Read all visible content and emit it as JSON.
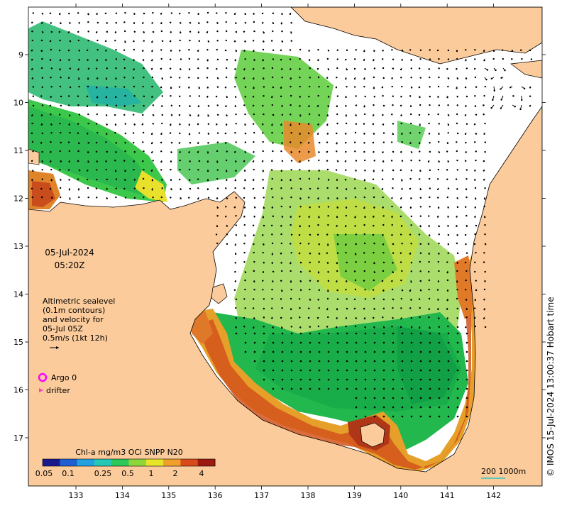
{
  "map": {
    "date_line1": "05-Jul-2024",
    "date_line2": "05:20Z",
    "sealevel_note": [
      "Altimetric sealevel",
      "(0.1m contours)",
      "and velocity for",
      "05-Jul 05Z",
      "0.5m/s (1kt 12h)"
    ],
    "argo_label": "Argo 0",
    "drifter_label": "drifter",
    "lat_ticks": [
      "9",
      "10",
      "11",
      "12",
      "13",
      "14",
      "15",
      "16",
      "17"
    ],
    "lon_ticks": [
      "133",
      "134",
      "135",
      "136",
      "137",
      "138",
      "139",
      "140",
      "141",
      "142"
    ],
    "colorbar": {
      "title": "Chl-a mg/m3 OCi SNPP N20",
      "tick_labels": [
        "0.05",
        "0.1",
        "0.25",
        "0.5",
        "1",
        "2",
        "4"
      ],
      "colors": [
        "#1a1a8c",
        "#1f5fd1",
        "#23a0e0",
        "#25c7b5",
        "#2cc85a",
        "#8fd63a",
        "#e8e42a",
        "#f0a02a",
        "#d94a1a",
        "#9c1a10"
      ]
    },
    "scale_bar": "200  1000m",
    "credit": "© IMOS 15-Jul-2024 13:00:37 Hobart time",
    "colors": {
      "land": "#fbcb9b",
      "ocean": "#ffffff",
      "argo_marker": "#ff00ff",
      "drifter_marker": "#ff3fbf"
    }
  }
}
